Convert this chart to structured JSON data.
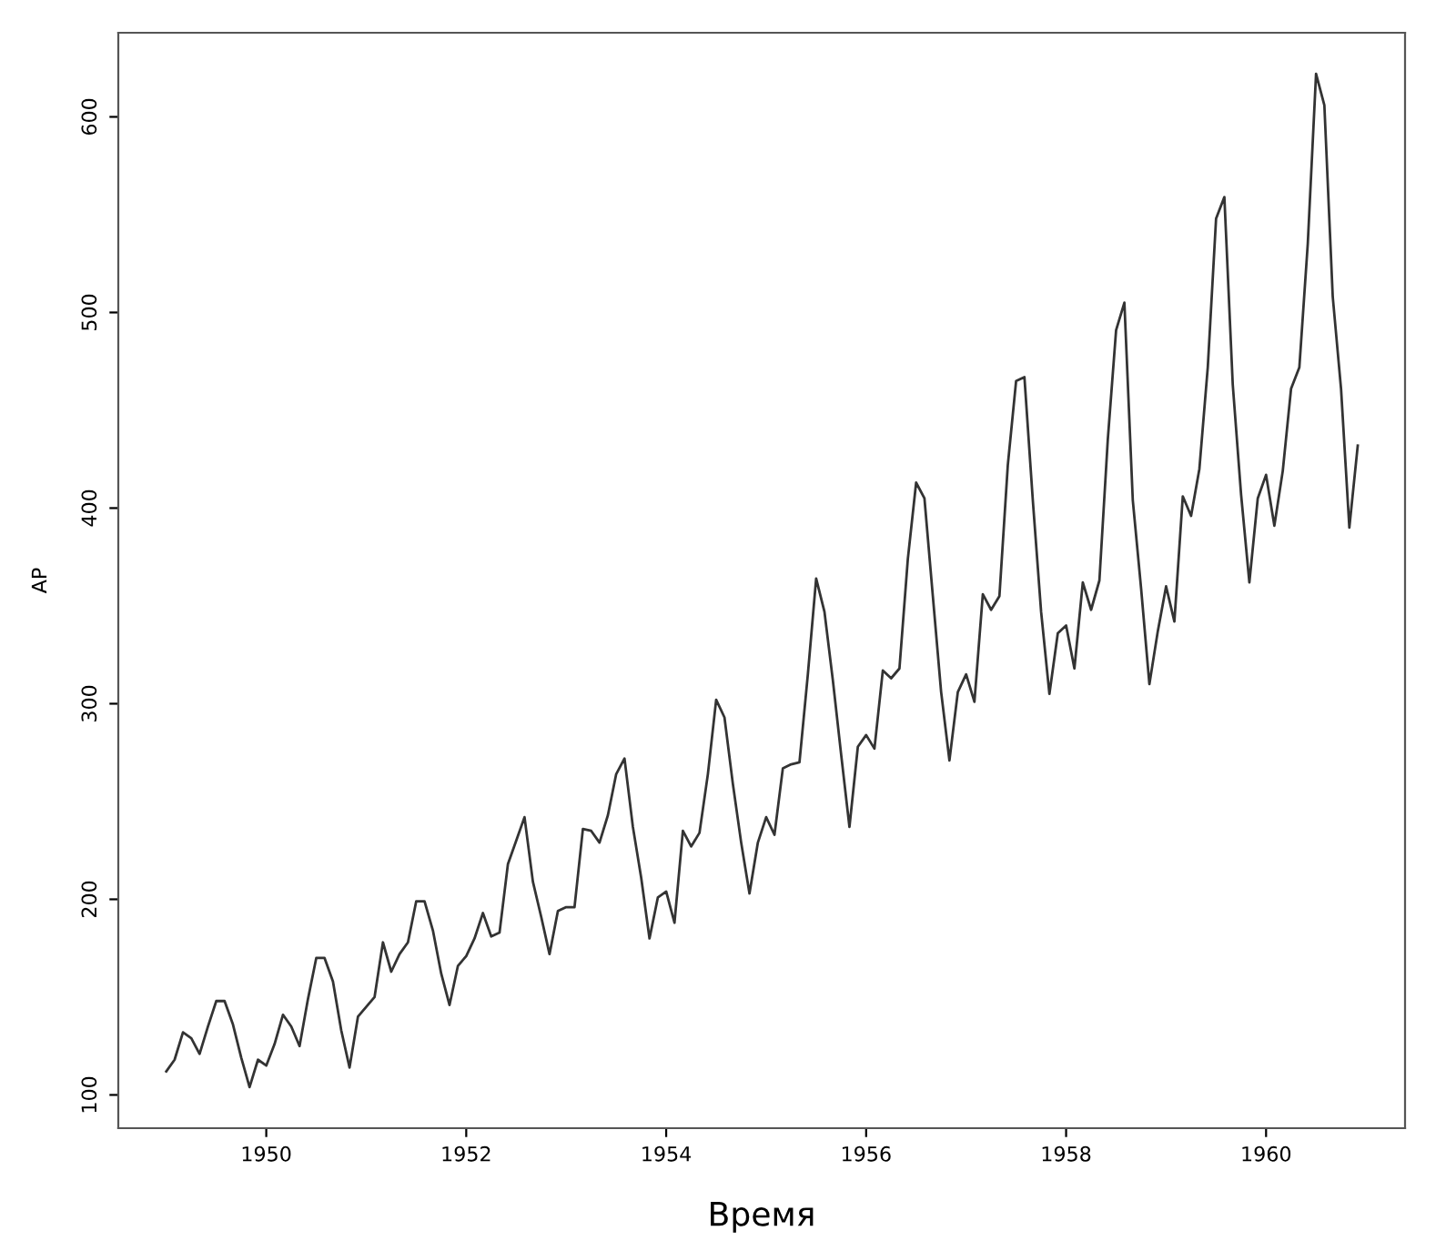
{
  "chart_data": {
    "type": "line",
    "xlabel": "Время",
    "ylabel": "AP",
    "x": [
      1949.0,
      1949.083,
      1949.167,
      1949.25,
      1949.333,
      1949.417,
      1949.5,
      1949.583,
      1949.667,
      1949.75,
      1949.833,
      1949.917,
      1950.0,
      1950.083,
      1950.167,
      1950.25,
      1950.333,
      1950.417,
      1950.5,
      1950.583,
      1950.667,
      1950.75,
      1950.833,
      1950.917,
      1951.0,
      1951.083,
      1951.167,
      1951.25,
      1951.333,
      1951.417,
      1951.5,
      1951.583,
      1951.667,
      1951.75,
      1951.833,
      1951.917,
      1952.0,
      1952.083,
      1952.167,
      1952.25,
      1952.333,
      1952.417,
      1952.5,
      1952.583,
      1952.667,
      1952.75,
      1952.833,
      1952.917,
      1953.0,
      1953.083,
      1953.167,
      1953.25,
      1953.333,
      1953.417,
      1953.5,
      1953.583,
      1953.667,
      1953.75,
      1953.833,
      1953.917,
      1954.0,
      1954.083,
      1954.167,
      1954.25,
      1954.333,
      1954.417,
      1954.5,
      1954.583,
      1954.667,
      1954.75,
      1954.833,
      1954.917,
      1955.0,
      1955.083,
      1955.167,
      1955.25,
      1955.333,
      1955.417,
      1955.5,
      1955.583,
      1955.667,
      1955.75,
      1955.833,
      1955.917,
      1956.0,
      1956.083,
      1956.167,
      1956.25,
      1956.333,
      1956.417,
      1956.5,
      1956.583,
      1956.667,
      1956.75,
      1956.833,
      1956.917,
      1957.0,
      1957.083,
      1957.167,
      1957.25,
      1957.333,
      1957.417,
      1957.5,
      1957.583,
      1957.667,
      1957.75,
      1957.833,
      1957.917,
      1958.0,
      1958.083,
      1958.167,
      1958.25,
      1958.333,
      1958.417,
      1958.5,
      1958.583,
      1958.667,
      1958.75,
      1958.833,
      1958.917,
      1959.0,
      1959.083,
      1959.167,
      1959.25,
      1959.333,
      1959.417,
      1959.5,
      1959.583,
      1959.667,
      1959.75,
      1959.833,
      1959.917,
      1960.0,
      1960.083,
      1960.167,
      1960.25,
      1960.333,
      1960.417,
      1960.5,
      1960.583,
      1960.667,
      1960.75,
      1960.833,
      1960.917
    ],
    "series": [
      {
        "color": "#333333",
        "values": [
          112,
          118,
          132,
          129,
          121,
          135,
          148,
          148,
          136,
          119,
          104,
          118,
          115,
          126,
          141,
          135,
          125,
          149,
          170,
          170,
          158,
          133,
          114,
          140,
          145,
          150,
          178,
          163,
          172,
          178,
          199,
          199,
          184,
          162,
          146,
          166,
          171,
          180,
          193,
          181,
          183,
          218,
          230,
          242,
          209,
          191,
          172,
          194,
          196,
          196,
          236,
          235,
          229,
          243,
          264,
          272,
          237,
          211,
          180,
          201,
          204,
          188,
          235,
          227,
          234,
          264,
          302,
          293,
          259,
          229,
          203,
          229,
          242,
          233,
          267,
          269,
          270,
          315,
          364,
          347,
          312,
          274,
          237,
          278,
          284,
          277,
          317,
          313,
          318,
          374,
          413,
          405,
          355,
          306,
          271,
          306,
          315,
          301,
          356,
          348,
          355,
          422,
          465,
          467,
          404,
          347,
          305,
          336,
          340,
          318,
          362,
          348,
          363,
          435,
          491,
          505,
          404,
          359,
          310,
          337,
          360,
          342,
          406,
          396,
          420,
          472,
          548,
          559,
          463,
          407,
          362,
          405,
          417,
          391,
          419,
          461,
          472,
          535,
          622,
          606,
          508,
          461,
          390,
          432
        ]
      }
    ],
    "xlim": [
      1948.52,
      1961.39
    ],
    "ylim": [
      83,
      643
    ],
    "xticks": [
      1950,
      1952,
      1954,
      1956,
      1958,
      1960
    ],
    "yticks": [
      100,
      200,
      300,
      400,
      500,
      600
    ],
    "grid": false,
    "legend": false,
    "marker": "none",
    "line_style": "solid"
  }
}
